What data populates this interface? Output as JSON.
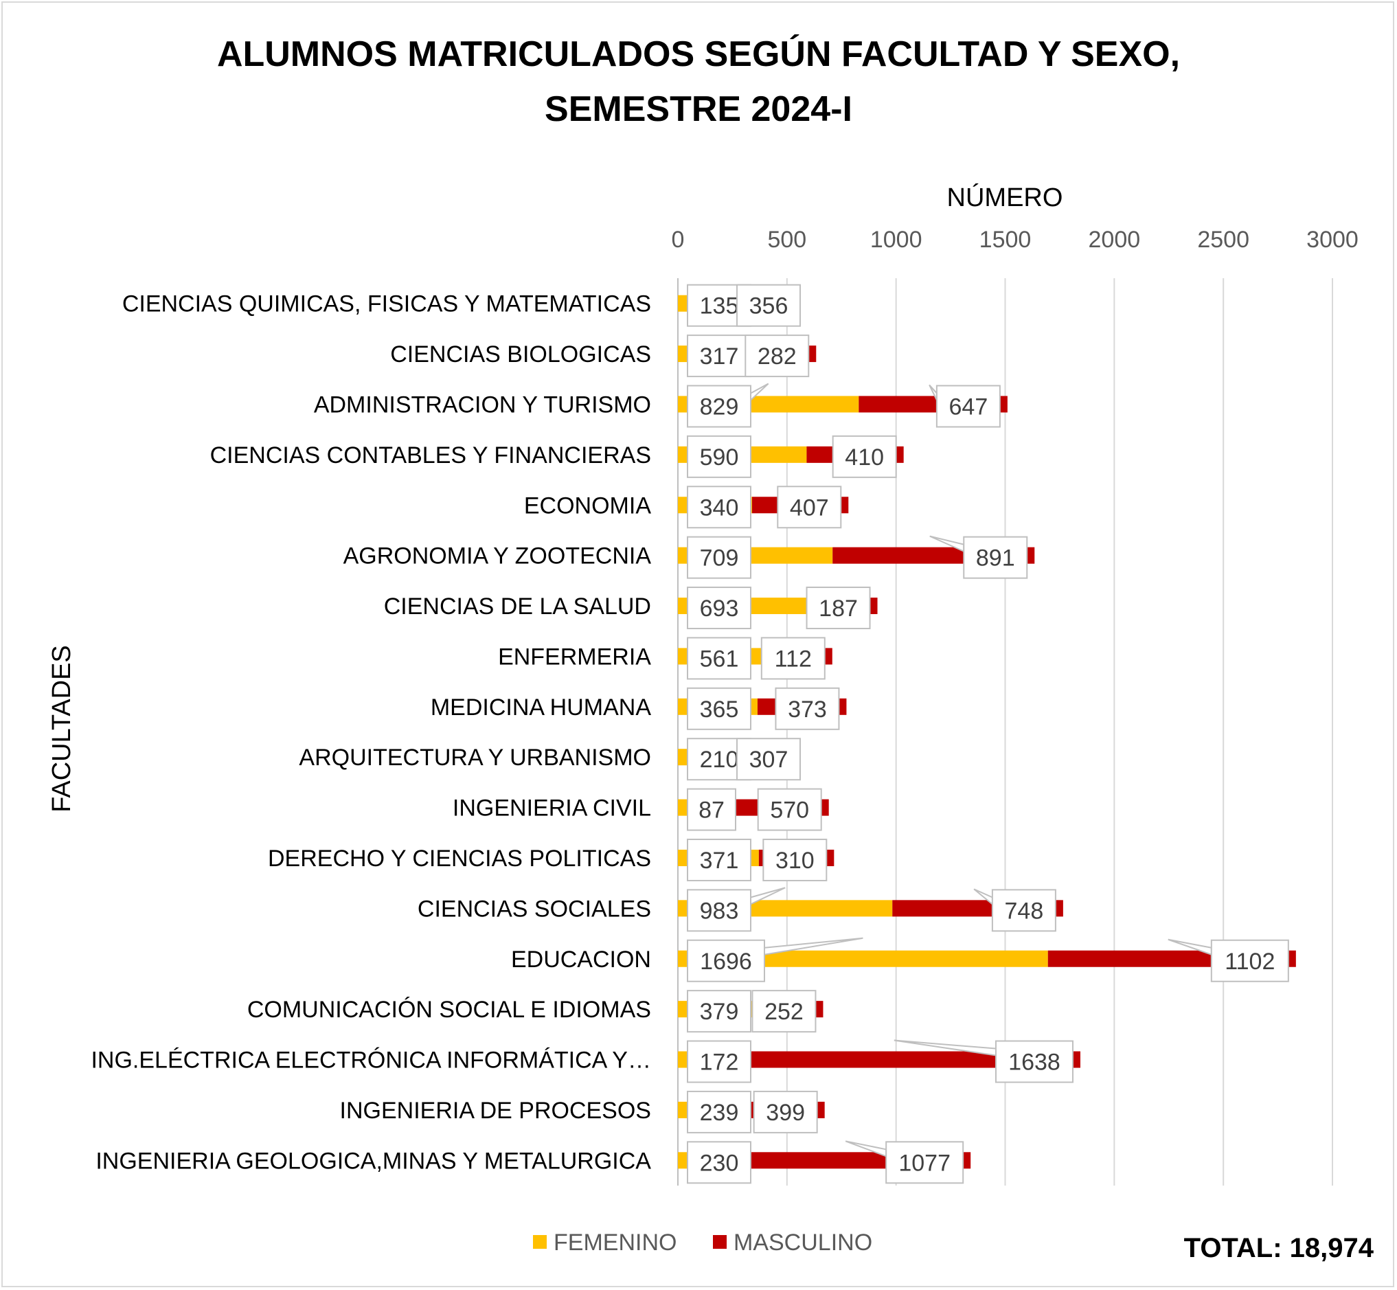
{
  "chart_data": {
    "type": "bar",
    "orientation": "horizontal",
    "stacked": true,
    "title_line1": "ALUMNOS MATRICULADOS SEGÚN FACULTAD Y SEXO,",
    "title_line2": "SEMESTRE 2024-I",
    "xlabel": "NÚMERO",
    "ylabel": "FACULTADES",
    "xlim": [
      0,
      3000
    ],
    "x_ticks": [
      "0",
      "500",
      "1000",
      "1500",
      "2000",
      "2500",
      "3000"
    ],
    "grid": "vertical",
    "legend_position": "bottom",
    "categories": [
      "CIENCIAS QUIMICAS, FISICAS Y MATEMATICAS",
      "CIENCIAS BIOLOGICAS",
      "ADMINISTRACION Y TURISMO",
      "CIENCIAS CONTABLES Y FINANCIERAS",
      "ECONOMIA",
      "AGRONOMIA Y ZOOTECNIA",
      "CIENCIAS DE LA SALUD",
      "ENFERMERIA",
      "MEDICINA HUMANA",
      "ARQUITECTURA Y URBANISMO",
      "INGENIERIA CIVIL",
      "DERECHO Y CIENCIAS POLITICAS",
      "CIENCIAS SOCIALES",
      "EDUCACION",
      "COMUNICACIÓN SOCIAL E IDIOMAS",
      "ING.ELÉCTRICA ELECTRÓNICA INFORMÁTICA Y…",
      "INGENIERIA DE PROCESOS",
      "INGENIERIA GEOLOGICA,MINAS Y METALURGICA"
    ],
    "series": [
      {
        "name": "FEMENINO",
        "color": "#ffc000",
        "values": [
          135,
          317,
          829,
          590,
          340,
          709,
          693,
          561,
          365,
          210,
          87,
          371,
          983,
          1696,
          379,
          172,
          239,
          230
        ]
      },
      {
        "name": "MASCULINO",
        "color": "#c00000",
        "values": [
          356,
          282,
          647,
          410,
          407,
          891,
          187,
          112,
          373,
          307,
          570,
          310,
          748,
          1102,
          252,
          1638,
          399,
          1077
        ]
      }
    ],
    "total_text": "TOTAL: 18,974"
  }
}
